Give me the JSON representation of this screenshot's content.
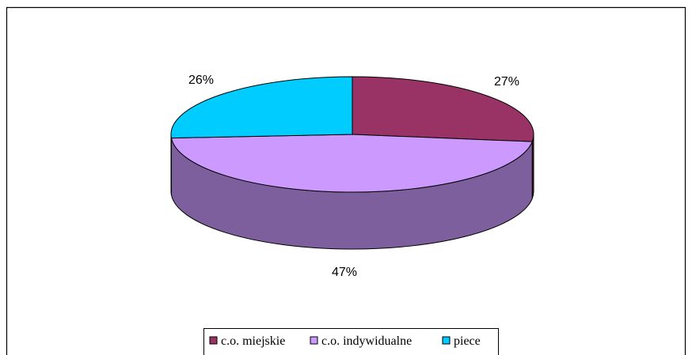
{
  "chart_data": {
    "type": "pie",
    "style": "3d",
    "title": "",
    "legend_position": "bottom",
    "slices": [
      {
        "label": "c.o. miejskie",
        "value": 27,
        "value_label": "27%",
        "color": "#993366"
      },
      {
        "label": "c.o. indywidualne",
        "value": 47,
        "value_label": "47%",
        "color": "#CC99FF"
      },
      {
        "label": "piece",
        "value": 26,
        "value_label": "26%",
        "color": "#00CCFF"
      }
    ]
  }
}
